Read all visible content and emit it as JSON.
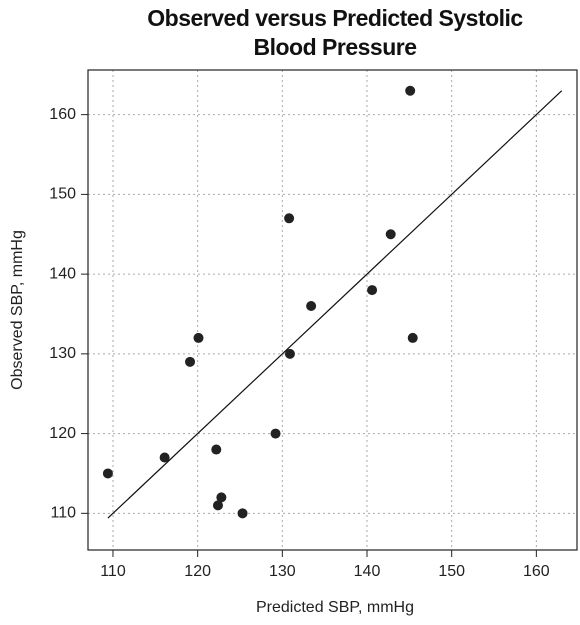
{
  "chart_data": {
    "type": "scatter",
    "title": "Observed versus Predicted Systolic Blood Pressure",
    "x_label": "Predicted SBP, mmHg",
    "y_label": "Observed SBP, mmHg",
    "series": [
      {
        "name": "SBP",
        "color": "#222222",
        "x": [
          109.4,
          116.1,
          119.1,
          120.1,
          122.2,
          122.4,
          122.8,
          125.3,
          129.2,
          130.8,
          130.9,
          133.4,
          142.8,
          140.6,
          145.1,
          145.4
        ],
        "values": [
          115,
          117,
          129,
          132,
          118,
          111,
          112,
          110,
          120,
          147,
          130,
          136,
          145,
          138,
          163,
          132
        ]
      }
    ],
    "reference_line": {
      "x": [
        109.4,
        163
      ],
      "y": [
        109.4,
        163
      ],
      "color": "#111111"
    },
    "xlim": [
      107.05,
      164.8
    ],
    "ylim": [
      105.4,
      165.6
    ],
    "xticks": [
      110,
      120,
      130,
      140,
      150,
      160
    ],
    "yticks": [
      110,
      120,
      130,
      140,
      150,
      160
    ],
    "grid": true
  }
}
